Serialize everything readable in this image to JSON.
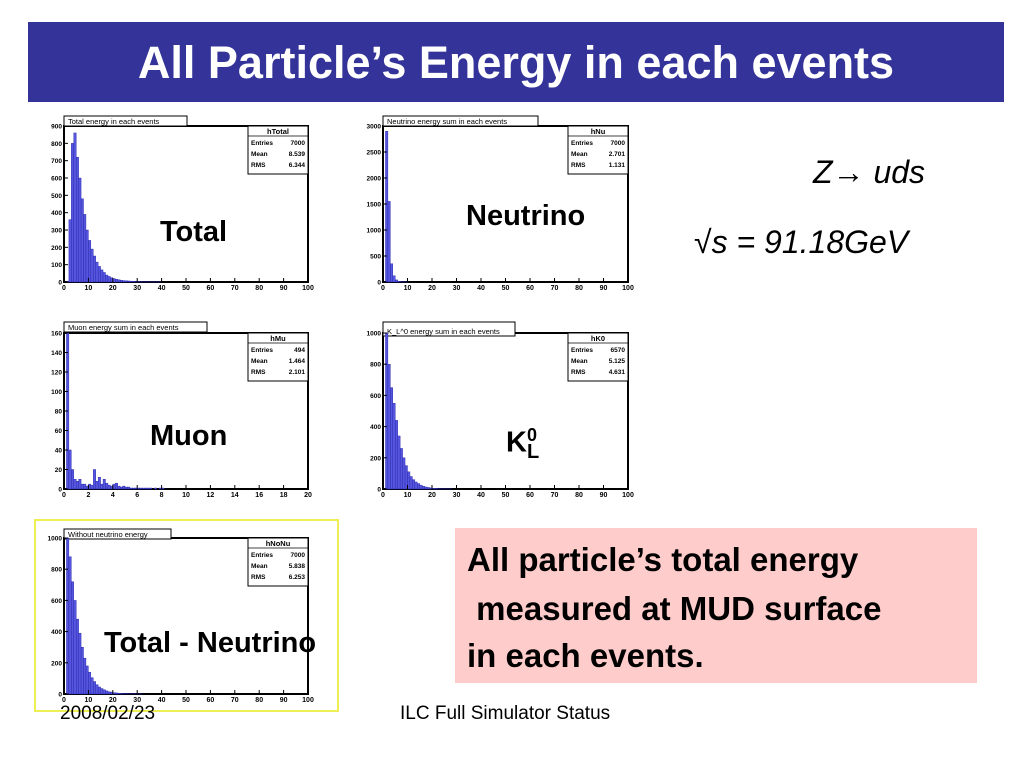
{
  "slide": {
    "title": "All Particle’s Energy in each events",
    "process_label": "Z→ uds",
    "energy_label": "√s = 91.18GeV",
    "info_lines": [
      "All particle’s total energy",
      " measured at MUD surface",
      "in each events."
    ],
    "footer_left": "2008/02/23",
    "footer_center": "ILC Full Simulator Status",
    "colors": {
      "title_bg": "#333399",
      "hist_fill": "#5555dd",
      "hist_stroke": "#2222aa",
      "info_bg": "#ffcccc",
      "highlight": "#eeee55"
    }
  },
  "labels": {
    "total": "Total",
    "neutrino": "Neutrino",
    "muon": "Muon",
    "k0l_main": "K",
    "k0l_sup": "0",
    "k0l_sub": "L",
    "total_minus_neutrino": "Total - Neutrino"
  },
  "chart_data": [
    {
      "type": "bar",
      "title": "Total energy in each events",
      "stats": {
        "name": "hTotal",
        "entries": "7000",
        "mean": "8.539",
        "rms": "6.344"
      },
      "xlim": [
        0,
        100
      ],
      "ylim": [
        0,
        900
      ],
      "xticks": [
        0,
        10,
        20,
        30,
        40,
        50,
        60,
        70,
        80,
        90,
        100
      ],
      "yticks": [
        0,
        100,
        200,
        300,
        400,
        500,
        600,
        700,
        800,
        900
      ],
      "bin_width": 1,
      "values": [
        0,
        5,
        360,
        800,
        860,
        720,
        600,
        480,
        390,
        300,
        240,
        190,
        150,
        115,
        90,
        70,
        55,
        40,
        32,
        25,
        20,
        16,
        13,
        10,
        8,
        7,
        6,
        5,
        4,
        3,
        3,
        2,
        2,
        2,
        1,
        1,
        1,
        1,
        1,
        1
      ]
    },
    {
      "type": "bar",
      "title": "Neutrino energy sum in each events",
      "stats": {
        "name": "hNu",
        "entries": "7000",
        "mean": "2.701",
        "rms": "1.131"
      },
      "xlim": [
        0,
        100
      ],
      "ylim": [
        0,
        3000
      ],
      "xticks": [
        0,
        10,
        20,
        30,
        40,
        50,
        60,
        70,
        80,
        90,
        100
      ],
      "yticks": [
        0,
        500,
        1000,
        1500,
        2000,
        2500,
        3000
      ],
      "bin_width": 1,
      "values": [
        0,
        2900,
        1550,
        350,
        120,
        40,
        15,
        8,
        4,
        2
      ]
    },
    {
      "type": "bar",
      "title": "Muon energy sum in each events",
      "stats": {
        "name": "hMu",
        "entries": "494",
        "mean": "1.464",
        "rms": "2.101"
      },
      "xlim": [
        0,
        20
      ],
      "ylim": [
        0,
        160
      ],
      "xticks": [
        0,
        2,
        4,
        6,
        8,
        10,
        12,
        14,
        16,
        18,
        20
      ],
      "yticks": [
        0,
        20,
        40,
        60,
        80,
        100,
        120,
        140,
        160
      ],
      "bin_width": 0.2,
      "values": [
        0,
        165,
        40,
        20,
        10,
        8,
        10,
        5,
        5,
        3,
        5,
        4,
        20,
        8,
        12,
        5,
        10,
        6,
        4,
        3,
        5,
        6,
        3,
        2,
        3,
        2,
        2,
        1,
        1,
        1,
        1,
        1,
        1,
        1,
        1,
        1,
        0,
        1,
        0,
        1,
        1
      ]
    },
    {
      "type": "bar",
      "title": "K_L^0 energy sum in each events",
      "stats": {
        "name": "hK0",
        "entries": "6570",
        "mean": "5.125",
        "rms": "4.631"
      },
      "xlim": [
        0,
        100
      ],
      "ylim": [
        0,
        1000
      ],
      "xticks": [
        0,
        10,
        20,
        30,
        40,
        50,
        60,
        70,
        80,
        90,
        100
      ],
      "yticks": [
        0,
        200,
        400,
        600,
        800,
        1000
      ],
      "bin_width": 1,
      "values": [
        0,
        1000,
        800,
        650,
        550,
        440,
        340,
        260,
        200,
        150,
        110,
        80,
        60,
        45,
        35,
        25,
        18,
        13,
        10,
        7,
        5,
        4,
        3,
        2,
        2,
        1,
        1,
        1
      ]
    },
    {
      "type": "bar",
      "title": "Without neutrino energy",
      "stats": {
        "name": "hNoNu",
        "entries": "7000",
        "mean": "5.838",
        "rms": "6.253"
      },
      "xlim": [
        0,
        100
      ],
      "ylim": [
        0,
        1000
      ],
      "xticks": [
        0,
        10,
        20,
        30,
        40,
        50,
        60,
        70,
        80,
        90,
        100
      ],
      "yticks": [
        0,
        200,
        400,
        600,
        800,
        1000
      ],
      "bin_width": 1,
      "values": [
        0,
        1000,
        880,
        720,
        600,
        480,
        390,
        300,
        230,
        180,
        140,
        105,
        80,
        60,
        45,
        35,
        27,
        20,
        15,
        12,
        9,
        7,
        5,
        4,
        3,
        3,
        2,
        2,
        1,
        1,
        1,
        1
      ]
    }
  ]
}
